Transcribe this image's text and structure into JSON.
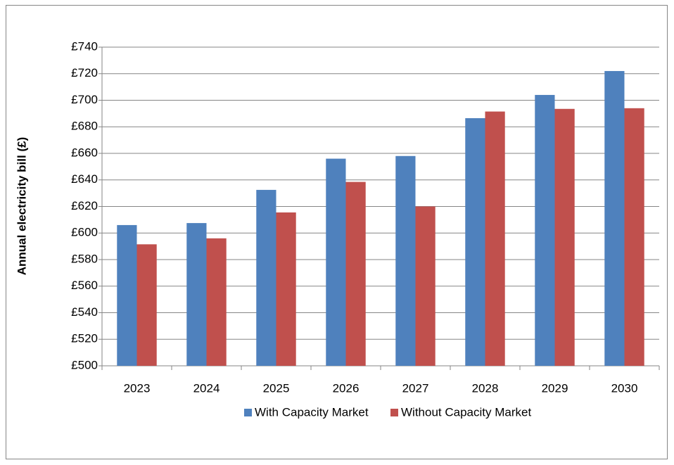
{
  "chart_data": {
    "type": "bar",
    "y_label": "Annual electricity bill (£)",
    "categories": [
      "2023",
      "2024",
      "2025",
      "2026",
      "2027",
      "2028",
      "2029",
      "2030"
    ],
    "series": [
      {
        "name": "With Capacity Market",
        "color": "#4f81bd",
        "values": [
          606,
          607.5,
          632.5,
          656,
          658,
          686.5,
          704,
          722
        ]
      },
      {
        "name": "Without Capacity Market",
        "color": "#c0504d",
        "values": [
          591.5,
          596,
          615.5,
          638.5,
          620,
          691.5,
          693.5,
          694
        ]
      }
    ],
    "ylim": [
      500,
      740
    ],
    "yticks": [
      {
        "value": 500,
        "label": "£500"
      },
      {
        "value": 520,
        "label": "£520"
      },
      {
        "value": 540,
        "label": "£540"
      },
      {
        "value": 560,
        "label": "£560"
      },
      {
        "value": 580,
        "label": "£580"
      },
      {
        "value": 600,
        "label": "£600"
      },
      {
        "value": 620,
        "label": "£620"
      },
      {
        "value": 640,
        "label": "£640"
      },
      {
        "value": 660,
        "label": "£660"
      },
      {
        "value": 680,
        "label": "£680"
      },
      {
        "value": 700,
        "label": "£700"
      },
      {
        "value": 720,
        "label": "£720"
      },
      {
        "value": 740,
        "label": "£740"
      }
    ],
    "grid": true,
    "legend": "bottom"
  }
}
